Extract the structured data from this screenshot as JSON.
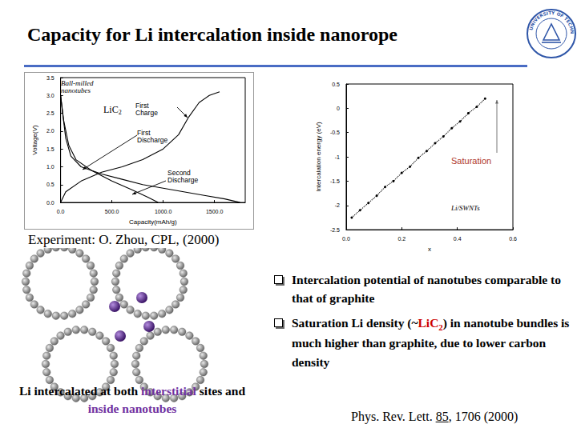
{
  "title": "Capacity for Li intercalation inside nanorope",
  "logo": {
    "text": "DALIAN UNIVERSITY OF TECHNOLOGY"
  },
  "chart_data": [
    {
      "type": "line",
      "x_label": "Capacity(mAh/g)",
      "y_label": "Voltage(V)",
      "xlim": [
        0,
        1800
      ],
      "ylim": [
        0,
        3.5
      ],
      "xticks": [
        {
          "value": 0,
          "label": "0.0"
        },
        {
          "value": 500,
          "label": "500.0"
        },
        {
          "value": 1000,
          "label": "1000.0"
        },
        {
          "value": 1500,
          "label": "1500.0"
        }
      ],
      "yticks": [
        {
          "value": 0,
          "label": "0.0"
        },
        0.5,
        {
          "value": 1,
          "label": "1.0"
        },
        1.5,
        {
          "value": 2,
          "label": "2.0"
        },
        2.5,
        {
          "value": 3,
          "label": "3.0"
        },
        3.5
      ],
      "grid": false,
      "marker": "none",
      "line_style": "solid",
      "annotations": [
        {
          "text": "Ball-milled nanotubes",
          "color": "#000000"
        },
        {
          "text": "LiC",
          "subscript": "2",
          "color": "#000000"
        }
      ],
      "series": [
        {
          "name": "First Discharge",
          "color": "#000000",
          "points": [
            [
              0,
              3.0
            ],
            [
              20,
              2.5
            ],
            [
              50,
              1.8
            ],
            [
              100,
              1.3
            ],
            [
              200,
              1.0
            ],
            [
              400,
              0.8
            ],
            [
              600,
              0.65
            ],
            [
              800,
              0.5
            ],
            [
              1000,
              0.4
            ],
            [
              1200,
              0.3
            ],
            [
              1400,
              0.2
            ],
            [
              1600,
              0.1
            ],
            [
              1750,
              0.0
            ]
          ]
        },
        {
          "name": "Second Discharge",
          "color": "#000000",
          "points": [
            [
              0,
              3.0
            ],
            [
              30,
              2.3
            ],
            [
              80,
              1.6
            ],
            [
              150,
              1.2
            ],
            [
              300,
              0.9
            ],
            [
              500,
              0.6
            ],
            [
              700,
              0.35
            ],
            [
              850,
              0.15
            ],
            [
              950,
              0.0
            ]
          ]
        },
        {
          "name": "First Charge",
          "color": "#000000",
          "points": [
            [
              0,
              0.0
            ],
            [
              50,
              0.3
            ],
            [
              200,
              0.6
            ],
            [
              400,
              0.85
            ],
            [
              600,
              1.0
            ],
            [
              800,
              1.2
            ],
            [
              1000,
              1.5
            ],
            [
              1150,
              1.9
            ],
            [
              1250,
              2.4
            ],
            [
              1350,
              2.8
            ],
            [
              1450,
              3.0
            ],
            [
              1550,
              3.1
            ]
          ]
        }
      ]
    },
    {
      "type": "line",
      "x_label": "x",
      "y_label": "Intercalation energy (eV)",
      "xlim": [
        0,
        0.6
      ],
      "ylim": [
        -2.5,
        0.5
      ],
      "xticks": [
        {
          "value": 0,
          "label": "0.0"
        },
        0.2,
        0.4,
        0.6
      ],
      "yticks": [
        -2.5,
        -2,
        -1.5,
        -1,
        -0.5,
        0,
        0.5
      ],
      "grid": false,
      "marker": "circle",
      "line_style": "dotted",
      "annotations": [
        {
          "text": "Saturation",
          "color": "#b03a2e"
        }
      ],
      "series": [
        {
          "name": "Li/SWNTs",
          "color": "#000000",
          "points": [
            [
              0.02,
              -2.25
            ],
            [
              0.05,
              -2.1
            ],
            [
              0.08,
              -1.95
            ],
            [
              0.11,
              -1.8
            ],
            [
              0.14,
              -1.62
            ],
            [
              0.17,
              -1.5
            ],
            [
              0.2,
              -1.33
            ],
            [
              0.23,
              -1.2
            ],
            [
              0.26,
              -1.02
            ],
            [
              0.29,
              -0.88
            ],
            [
              0.32,
              -0.72
            ],
            [
              0.35,
              -0.58
            ],
            [
              0.38,
              -0.41
            ],
            [
              0.41,
              -0.27
            ],
            [
              0.44,
              -0.1
            ],
            [
              0.47,
              0.03
            ],
            [
              0.5,
              0.2
            ]
          ]
        }
      ]
    }
  ],
  "experiment": "Experiment: O. Zhou, CPL, (2000)",
  "bullets": [
    [
      {
        "text": "Intercalation potential of nanotubes comparable to that of graphite"
      }
    ],
    [
      {
        "text": "Saturation Li density (~"
      },
      {
        "text": "LiC",
        "color": "#cc0000"
      },
      {
        "text": "2",
        "color": "#cc0000",
        "sub": true
      },
      {
        "text": ") in nanotube bundles is much higher than graphite, due to lower carbon density"
      }
    ]
  ],
  "caption": [
    {
      "text": "Li intercalated at both "
    },
    {
      "text": "interstitial",
      "color": "#7030a0"
    },
    {
      "text": " sites and "
    },
    {
      "text": "inside nanotubes",
      "color": "#7030a0"
    }
  ],
  "reference": [
    {
      "text": "Phys. Rev. Lett. "
    },
    {
      "text": "85",
      "underline": true
    },
    {
      "text": ", 1706 (2000)"
    }
  ]
}
